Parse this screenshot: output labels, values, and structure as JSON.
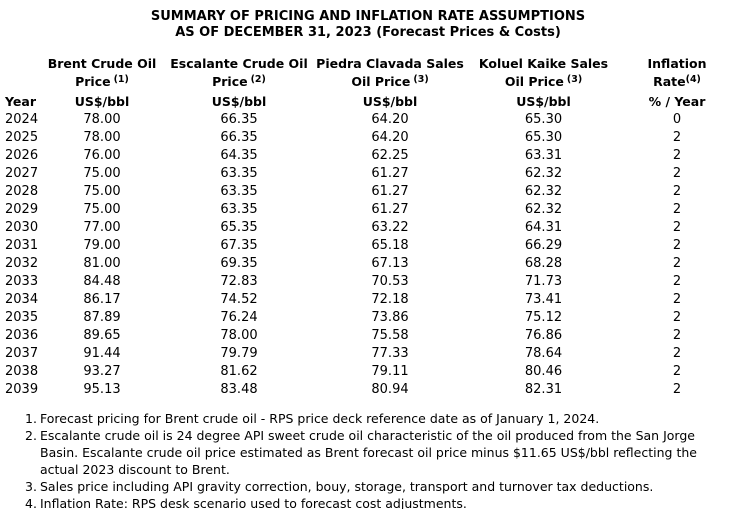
{
  "title": {
    "line1": "SUMMARY OF PRICING AND INFLATION RATE ASSUMPTIONS",
    "line2": "AS OF DECEMBER 31, 2023 (Forecast Prices & Costs)"
  },
  "table": {
    "columns": [
      {
        "label": "Year"
      },
      {
        "line1": "Brent Crude Oil",
        "line2": "Price",
        "sup": "(1)",
        "line3": "US$/bbl"
      },
      {
        "line1": "Escalante Crude Oil",
        "line2": "Price",
        "sup": "(2)",
        "line3": "US$/bbl"
      },
      {
        "line1": "Piedra Clavada Sales",
        "line2": "Oil Price",
        "sup": "(3)",
        "line3": "US$/bbl"
      },
      {
        "line1": "Koluel Kaike Sales",
        "line2": "Oil Price",
        "sup": "(3)",
        "line3": "US$/bbl"
      },
      {
        "line1": "Inflation",
        "line2": "Rate",
        "sup": "(4)",
        "line3": "% / Year"
      }
    ],
    "rows": [
      [
        "2024",
        "78.00",
        "66.35",
        "64.20",
        "65.30",
        "0"
      ],
      [
        "2025",
        "78.00",
        "66.35",
        "64.20",
        "65.30",
        "2"
      ],
      [
        "2026",
        "76.00",
        "64.35",
        "62.25",
        "63.31",
        "2"
      ],
      [
        "2027",
        "75.00",
        "63.35",
        "61.27",
        "62.32",
        "2"
      ],
      [
        "2028",
        "75.00",
        "63.35",
        "61.27",
        "62.32",
        "2"
      ],
      [
        "2029",
        "75.00",
        "63.35",
        "61.27",
        "62.32",
        "2"
      ],
      [
        "2030",
        "77.00",
        "65.35",
        "63.22",
        "64.31",
        "2"
      ],
      [
        "2031",
        "79.00",
        "67.35",
        "65.18",
        "66.29",
        "2"
      ],
      [
        "2032",
        "81.00",
        "69.35",
        "67.13",
        "68.28",
        "2"
      ],
      [
        "2033",
        "84.48",
        "72.83",
        "70.53",
        "71.73",
        "2"
      ],
      [
        "2034",
        "86.17",
        "74.52",
        "72.18",
        "73.41",
        "2"
      ],
      [
        "2035",
        "87.89",
        "76.24",
        "73.86",
        "75.12",
        "2"
      ],
      [
        "2036",
        "89.65",
        "78.00",
        "75.58",
        "76.86",
        "2"
      ],
      [
        "2037",
        "91.44",
        "79.79",
        "77.33",
        "78.64",
        "2"
      ],
      [
        "2038",
        "93.27",
        "81.62",
        "79.11",
        "80.46",
        "2"
      ],
      [
        "2039",
        "95.13",
        "83.48",
        "80.94",
        "82.31",
        "2"
      ]
    ]
  },
  "footnotes": [
    {
      "num": "1.",
      "text": "Forecast pricing for Brent crude oil - RPS price deck reference date as of January 1, 2024."
    },
    {
      "num": "2.",
      "text": "Escalante crude oil is 24 degree API sweet crude oil characteristic of the oil produced from the San Jorge Basin. Escalante crude oil price estimated as Brent forecast oil price minus $11.65 US$/bbl reflecting the actual 2023 discount to Brent."
    },
    {
      "num": "3.",
      "text": "Sales price including API gravity correction, bouy, storage, transport and turnover tax deductions."
    },
    {
      "num": "4.",
      "text": "Inflation Rate: RPS desk scenario used to forecast cost adjustments."
    }
  ],
  "colors": {
    "text": "#000000",
    "background": "#ffffff"
  }
}
